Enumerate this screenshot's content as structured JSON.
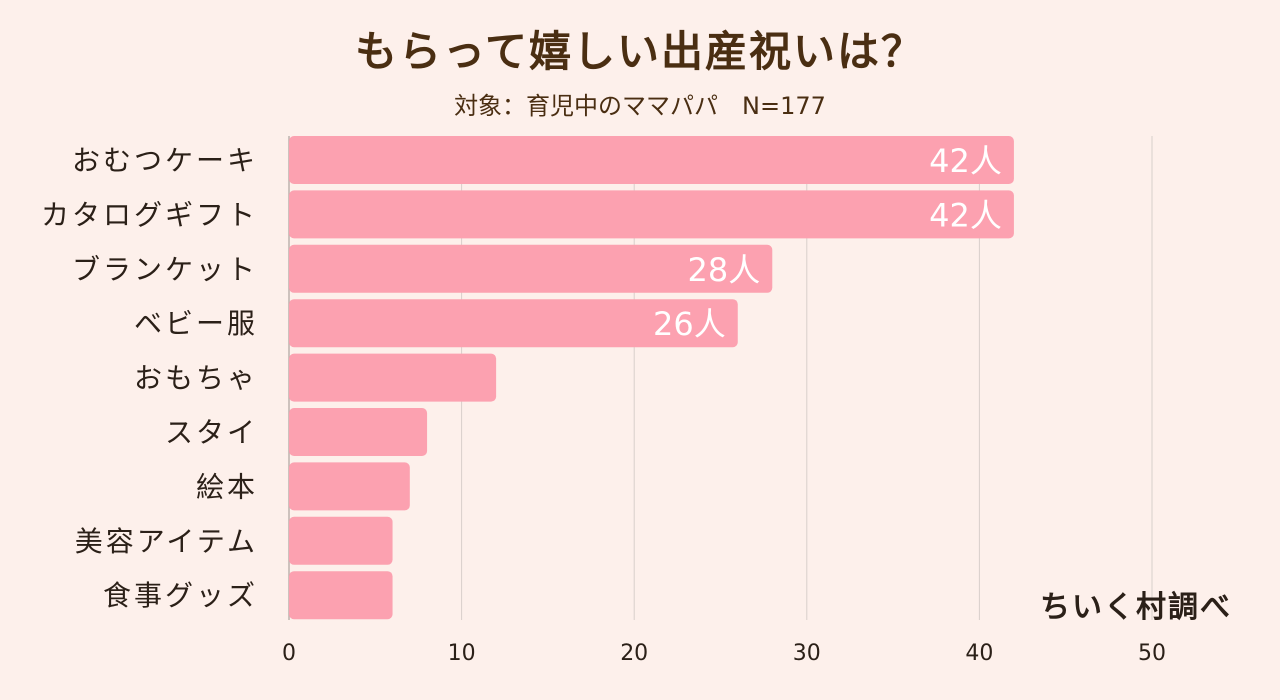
{
  "title": "もらって嬉しい出産祝いは？",
  "subtitle": "対象：育児中のママパパ　N=177",
  "credit": "ちいく村調べ",
  "colors": {
    "background": "#fdf0eb",
    "bar": "#fca1b0",
    "grid": "#d8cfcb",
    "axis": "#bdb3ae",
    "text": "#2b2018",
    "data_label": "#ffffff"
  },
  "chart_data": {
    "type": "bar",
    "orientation": "horizontal",
    "title": "もらって嬉しい出産祝いは？",
    "subtitle": "対象：育児中のママパパ　N=177",
    "categories": [
      "おむつケーキ",
      "カタログギフト",
      "ブランケット",
      "ベビー服",
      "おもちゃ",
      "スタイ",
      "絵本",
      "美容アイテム",
      "食事グッズ"
    ],
    "values": [
      42,
      42,
      28,
      26,
      12,
      8,
      7,
      6,
      6
    ],
    "data_labels": [
      "42人",
      "42人",
      "28人",
      "26人",
      "",
      "",
      "",
      "",
      ""
    ],
    "xlim": [
      0,
      50
    ],
    "xticks": [
      0,
      10,
      20,
      30,
      40,
      50
    ],
    "xlabel": "",
    "ylabel": "",
    "grid": "vertical",
    "legend": "none"
  }
}
